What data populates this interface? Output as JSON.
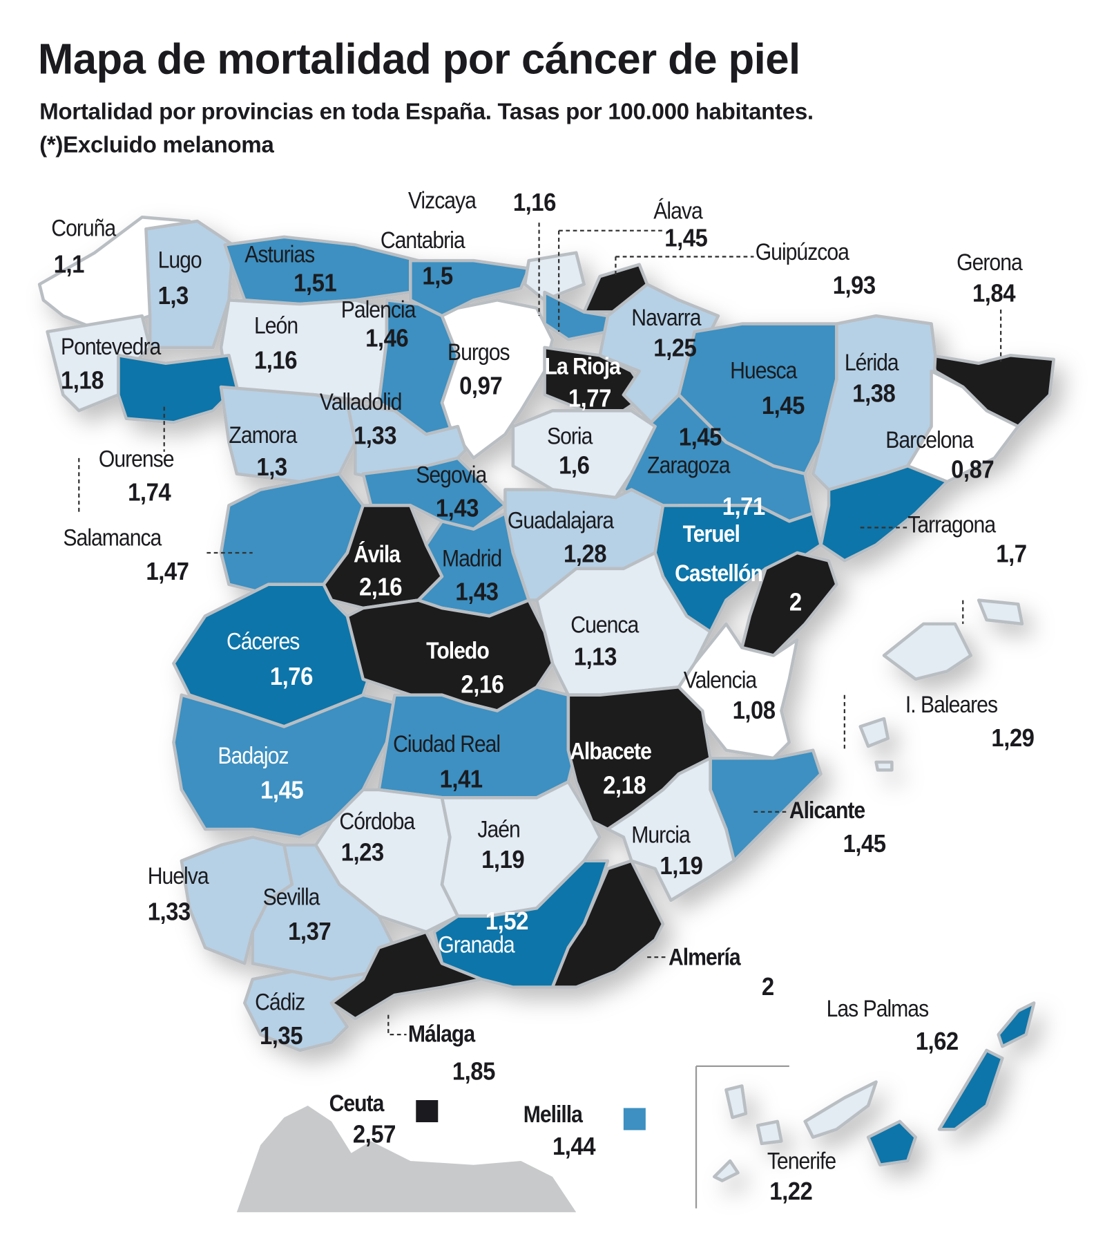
{
  "title": "Mapa de mortalidad por cáncer de piel",
  "subtitle": "Mortalidad por provincias en toda España. Tasas por 100.000 habitantes.",
  "note": "(*)Excluido melanoma",
  "colors": {
    "black": "#1b1b1f",
    "dark_blue": "#0b75a9",
    "mid_blue": "#3d90c1",
    "light_blue": "#b6d1e6",
    "very_light": "#e3ebf3",
    "white": "#ffffff",
    "border": "#b9bec3",
    "africa": "#c8c9cb"
  },
  "provinces": [
    {
      "name": "Coruña",
      "value": "1,1",
      "fill": "white"
    },
    {
      "name": "Lugo",
      "value": "1,3",
      "fill": "light_blue"
    },
    {
      "name": "Asturias",
      "value": "1,51",
      "fill": "mid_blue"
    },
    {
      "name": "Cantabria",
      "value": "1,5",
      "fill": "mid_blue"
    },
    {
      "name": "Vizcaya",
      "value": "1,16",
      "fill": "very_light"
    },
    {
      "name": "Álava",
      "value": "1,45",
      "fill": "mid_blue"
    },
    {
      "name": "Guipúzcoa",
      "value": "1,93",
      "fill": "black"
    },
    {
      "name": "Gerona",
      "value": "1,84",
      "fill": "black"
    },
    {
      "name": "Pontevedra",
      "value": "1,18",
      "fill": "very_light"
    },
    {
      "name": "León",
      "value": "1,16",
      "fill": "very_light"
    },
    {
      "name": "Palencia",
      "value": "1,46",
      "fill": "mid_blue"
    },
    {
      "name": "Burgos",
      "value": "0,97",
      "fill": "white"
    },
    {
      "name": "La Rioja",
      "value": "1,77",
      "fill": "black"
    },
    {
      "name": "Navarra",
      "value": "1,25",
      "fill": "light_blue"
    },
    {
      "name": "Huesca",
      "value": "1,45",
      "fill": "mid_blue"
    },
    {
      "name": "Lérida",
      "value": "1,38",
      "fill": "light_blue"
    },
    {
      "name": "Zaragoza",
      "value": "1,45",
      "fill": "mid_blue"
    },
    {
      "name": "Ourense",
      "value": "1,74",
      "fill": "dark_blue"
    },
    {
      "name": "Zamora",
      "value": "1,3",
      "fill": "light_blue"
    },
    {
      "name": "Valladolid",
      "value": "1,33",
      "fill": "light_blue"
    },
    {
      "name": "Soria",
      "value": "1,6",
      "fill": "very_light"
    },
    {
      "name": "Segovia",
      "value": "1,43",
      "fill": "mid_blue"
    },
    {
      "name": "Barcelona",
      "value": "0,87",
      "fill": "white"
    },
    {
      "name": "Salamanca",
      "value": "1,47",
      "fill": "mid_blue"
    },
    {
      "name": "Guadalajara",
      "value": "1,28",
      "fill": "light_blue"
    },
    {
      "name": "Teruel",
      "value": "1,71",
      "fill": "dark_blue"
    },
    {
      "name": "Tarragona",
      "value": "1,7",
      "fill": "dark_blue"
    },
    {
      "name": "Ávila",
      "value": "2,16",
      "fill": "black"
    },
    {
      "name": "Madrid",
      "value": "1,43",
      "fill": "mid_blue"
    },
    {
      "name": "Castellón",
      "value": "2",
      "fill": "black"
    },
    {
      "name": "Cáceres",
      "value": "1,76",
      "fill": "dark_blue"
    },
    {
      "name": "Cuenca",
      "value": "1,13",
      "fill": "very_light"
    },
    {
      "name": "Toledo",
      "value": "2,16",
      "fill": "black"
    },
    {
      "name": "Valencia",
      "value": "1,08",
      "fill": "white"
    },
    {
      "name": "I. Baleares",
      "value": "1,29",
      "fill": "very_light"
    },
    {
      "name": "Badajoz",
      "value": "1,45",
      "fill": "mid_blue"
    },
    {
      "name": "Ciudad Real",
      "value": "1,41",
      "fill": "mid_blue"
    },
    {
      "name": "Albacete",
      "value": "2,18",
      "fill": "black"
    },
    {
      "name": "Alicante",
      "value": "1,45",
      "fill": "mid_blue"
    },
    {
      "name": "Córdoba",
      "value": "1,23",
      "fill": "very_light"
    },
    {
      "name": "Jaén",
      "value": "1,19",
      "fill": "very_light"
    },
    {
      "name": "Murcia",
      "value": "1,19",
      "fill": "very_light"
    },
    {
      "name": "Huelva",
      "value": "1,33",
      "fill": "light_blue"
    },
    {
      "name": "Sevilla",
      "value": "1,37",
      "fill": "light_blue"
    },
    {
      "name": "Granada",
      "value": "1,52",
      "fill": "dark_blue"
    },
    {
      "name": "Almería",
      "value": "2",
      "fill": "black"
    },
    {
      "name": "Cádiz",
      "value": "1,35",
      "fill": "light_blue"
    },
    {
      "name": "Málaga",
      "value": "1,85",
      "fill": "black"
    },
    {
      "name": "Las Palmas",
      "value": "1,62",
      "fill": "dark_blue"
    },
    {
      "name": "Ceuta",
      "value": "2,57",
      "fill": "black"
    },
    {
      "name": "Melilla",
      "value": "1,44",
      "fill": "mid_blue"
    },
    {
      "name": "Tenerife",
      "value": "1,22",
      "fill": "very_light"
    }
  ]
}
